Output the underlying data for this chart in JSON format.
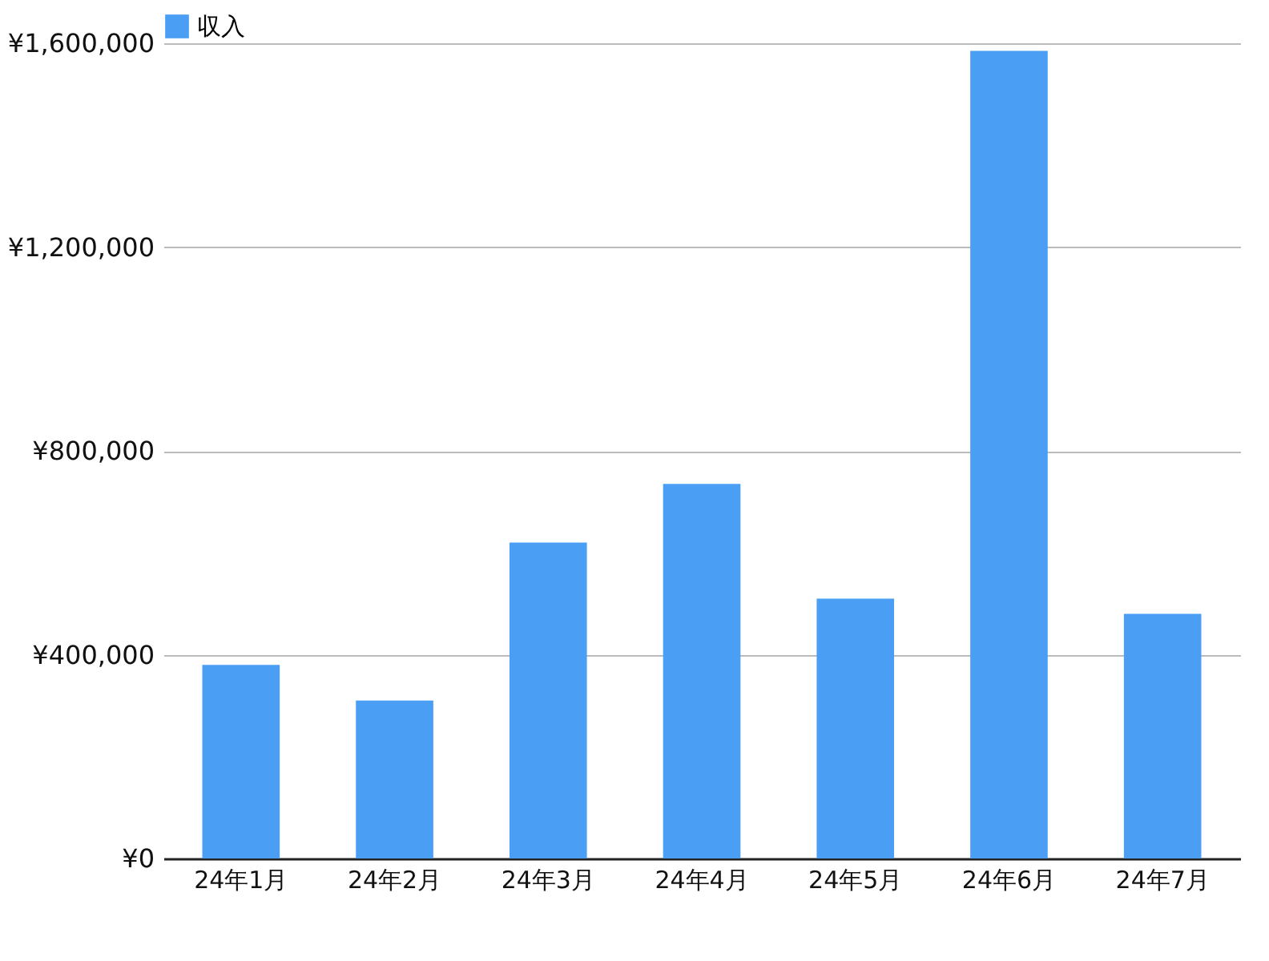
{
  "chart_data": {
    "type": "bar",
    "categories": [
      "24年1月",
      "24年2月",
      "24年3月",
      "24年4月",
      "24年5月",
      "24年6月",
      "24年7月"
    ],
    "series": [
      {
        "name": "収入",
        "color": "#4a9ff5",
        "values": [
          380000,
          310000,
          620000,
          735000,
          510000,
          1585000,
          480000
        ]
      }
    ],
    "ylim": [
      0,
      1600000
    ],
    "yticks": [
      {
        "value": 0,
        "label": "¥0"
      },
      {
        "value": 400000,
        "label": "¥400,000"
      },
      {
        "value": 800000,
        "label": "¥800,000"
      },
      {
        "value": 1200000,
        "label": "¥1,200,000"
      },
      {
        "value": 1600000,
        "label": "¥1,600,000"
      }
    ],
    "grid": "y",
    "legend": "top"
  }
}
